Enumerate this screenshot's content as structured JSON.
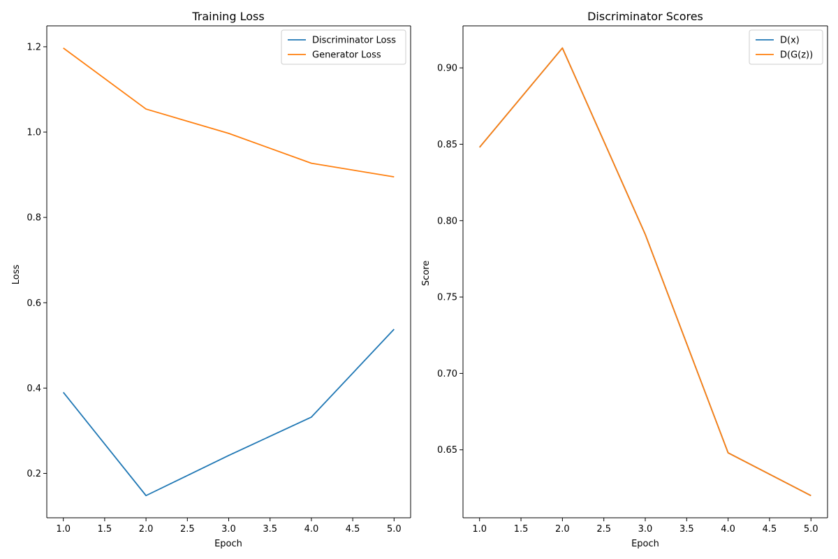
{
  "chart_data": [
    {
      "type": "line",
      "title": "Training Loss",
      "xlabel": "Epoch",
      "ylabel": "Loss",
      "x": [
        1,
        2,
        3,
        4,
        5
      ],
      "series": [
        {
          "name": "Discriminator Loss",
          "color": "#1f77b4",
          "values": [
            0.39,
            0.148,
            0.242,
            0.332,
            0.538
          ]
        },
        {
          "name": "Generator Loss",
          "color": "#ff7f0e",
          "values": [
            1.197,
            1.054,
            0.997,
            0.927,
            0.895
          ]
        }
      ],
      "xlim": [
        0.8,
        5.2
      ],
      "ylim": [
        0.096,
        1.249
      ],
      "xticks": [
        1.0,
        1.5,
        2.0,
        2.5,
        3.0,
        3.5,
        4.0,
        4.5,
        5.0
      ],
      "xtick_labels": [
        "1.0",
        "1.5",
        "2.0",
        "2.5",
        "3.0",
        "3.5",
        "4.0",
        "4.5",
        "5.0"
      ],
      "yticks": [
        0.2,
        0.4,
        0.6,
        0.8,
        1.0,
        1.2
      ],
      "ytick_labels": [
        "0.2",
        "0.4",
        "0.6",
        "0.8",
        "1.0",
        "1.2"
      ],
      "grid": false,
      "legend": "top-right"
    },
    {
      "type": "line",
      "title": "Discriminator Scores",
      "xlabel": "Epoch",
      "ylabel": "Score",
      "x": [
        1,
        2,
        3,
        4,
        5
      ],
      "series": [
        {
          "name": "D(x)",
          "color": "#1f77b4",
          "values": [
            0.848,
            0.913,
            0.791,
            0.648,
            0.62
          ]
        },
        {
          "name": "D(G(z))",
          "color": "#ff7f0e",
          "values": [
            0.848,
            0.913,
            0.791,
            0.648,
            0.62
          ]
        }
      ],
      "xlim": [
        0.8,
        5.2
      ],
      "ylim": [
        0.6055,
        0.9275
      ],
      "xticks": [
        1.0,
        1.5,
        2.0,
        2.5,
        3.0,
        3.5,
        4.0,
        4.5,
        5.0
      ],
      "xtick_labels": [
        "1.0",
        "1.5",
        "2.0",
        "2.5",
        "3.0",
        "3.5",
        "4.0",
        "4.5",
        "5.0"
      ],
      "yticks": [
        0.65,
        0.7,
        0.75,
        0.8,
        0.85,
        0.9
      ],
      "ytick_labels": [
        "0.65",
        "0.70",
        "0.75",
        "0.80",
        "0.85",
        "0.90"
      ],
      "grid": false,
      "legend": "top-right"
    }
  ]
}
